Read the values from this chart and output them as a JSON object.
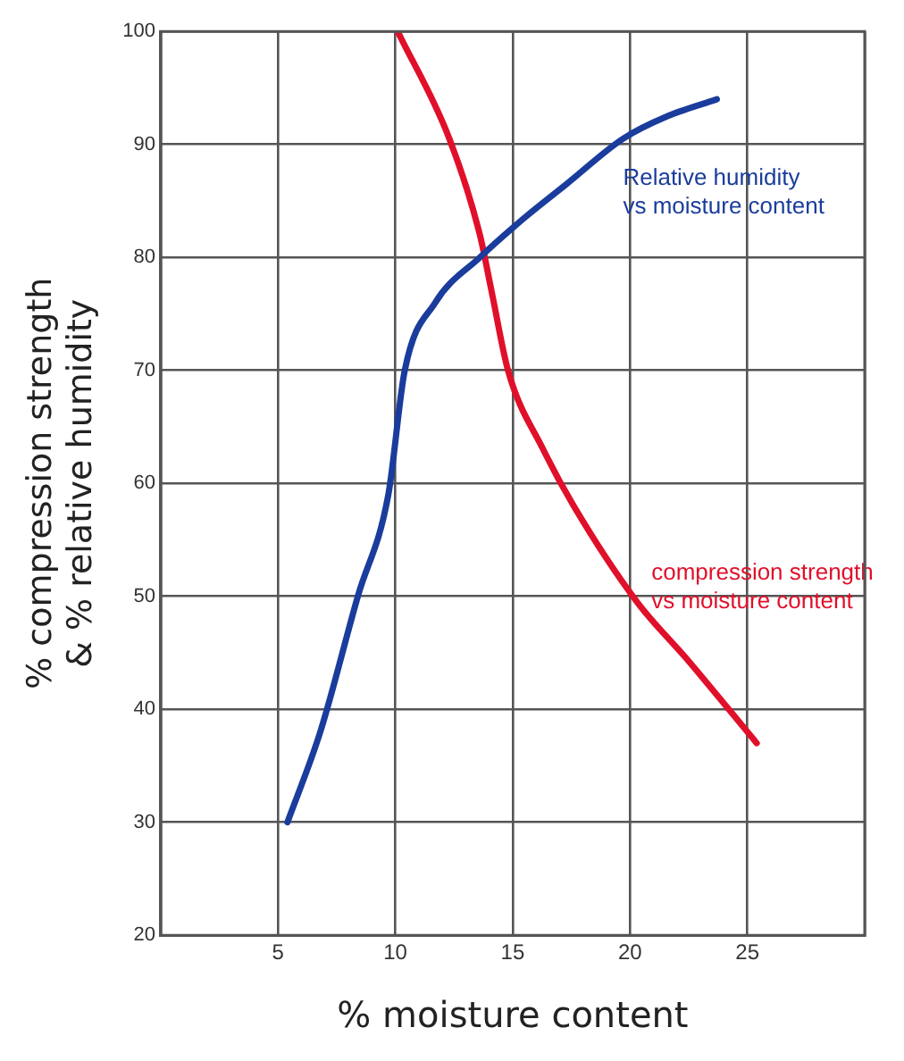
{
  "chart_data": {
    "type": "line",
    "xlabel": "% moisture content",
    "ylabel": "% compression strength & % relative humidity",
    "xlim": [
      0,
      30
    ],
    "xticks": [
      {
        "value": 0,
        "label": null
      },
      5,
      10,
      15,
      20,
      25,
      {
        "value": 30,
        "label": null
      }
    ],
    "ylim": [
      20,
      100
    ],
    "yticks": [
      20,
      30,
      40,
      50,
      60,
      70,
      80,
      90,
      100
    ],
    "grid": true,
    "legend": false,
    "marker": "none",
    "line_style": "solid",
    "series": [
      {
        "name": "Relative humidity vs moisture content",
        "color": "#1a3c9c",
        "x": [
          5.4,
          6.8,
          8.4,
          9.7,
          10.4,
          11.7,
          13.6,
          15.5,
          17.3,
          19.7,
          21.6,
          23.7
        ],
        "values": [
          30,
          38,
          50,
          59,
          70,
          76,
          80,
          83.5,
          86.5,
          90.5,
          92.5,
          94
        ]
      },
      {
        "name": "compression strength vs moisture content",
        "color": "#e0102a",
        "x": [
          10.1,
          12.3,
          13.6,
          14.1,
          14.8,
          16.3,
          17.6,
          20.3,
          22.4,
          25.4
        ],
        "values": [
          100,
          90.5,
          82,
          77,
          70,
          63,
          58,
          49.5,
          44.5,
          37
        ]
      }
    ]
  }
}
